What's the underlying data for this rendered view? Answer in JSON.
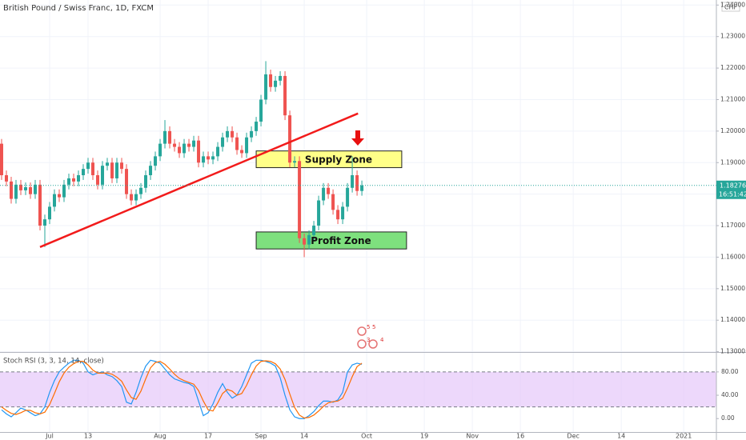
{
  "chart_data": {
    "type": "candlestick",
    "title": "British Pound / Swiss Franc, 1D, FXCM",
    "currency": "CHF",
    "x": [
      0,
      1,
      2,
      3,
      4,
      5,
      6,
      7,
      8,
      9,
      10,
      11,
      12,
      13,
      14,
      15,
      16,
      17,
      18,
      19,
      20,
      21,
      22,
      23,
      24,
      25,
      26,
      27,
      28,
      29,
      30,
      31,
      32,
      33,
      34,
      35,
      36,
      37,
      38,
      39,
      40,
      41,
      42,
      43,
      44,
      45,
      46,
      47,
      48,
      49,
      50,
      51,
      52,
      53,
      54,
      55,
      56,
      57,
      58,
      59,
      60,
      61,
      62,
      63,
      64,
      65,
      66,
      67,
      68,
      69,
      70,
      71,
      72,
      73,
      74,
      75
    ],
    "open": [
      1.196,
      1.186,
      1.184,
      1.1785,
      1.183,
      1.1812,
      1.1822,
      1.18,
      1.183,
      1.17,
      1.172,
      1.176,
      1.18,
      1.179,
      1.183,
      1.185,
      1.184,
      1.186,
      1.188,
      1.19,
      1.186,
      1.183,
      1.189,
      1.19,
      1.185,
      1.19,
      1.188,
      1.18,
      1.178,
      1.18,
      1.182,
      1.186,
      1.189,
      1.192,
      1.196,
      1.2,
      1.196,
      1.195,
      1.193,
      1.196,
      1.195,
      1.197,
      1.19,
      1.192,
      1.191,
      1.192,
      1.195,
      1.198,
      1.2,
      1.198,
      1.194,
      1.193,
      1.198,
      1.2,
      1.203,
      1.21,
      1.218,
      1.214,
      1.216,
      1.2175,
      1.205,
      1.19,
      1.1905,
      1.166,
      1.164,
      1.167,
      1.17,
      1.178,
      1.182,
      1.18,
      1.175,
      1.172,
      1.176,
      1.182,
      1.186,
      1.181
    ],
    "high": [
      1.1975,
      1.1875,
      1.1855,
      1.1845,
      1.1845,
      1.1837,
      1.1837,
      1.1845,
      1.1845,
      1.1735,
      1.1775,
      1.1815,
      1.1815,
      1.1845,
      1.1865,
      1.1865,
      1.1875,
      1.1895,
      1.1915,
      1.1915,
      1.1875,
      1.1905,
      1.1915,
      1.1915,
      1.1915,
      1.1915,
      1.1895,
      1.1815,
      1.1815,
      1.1835,
      1.1875,
      1.1905,
      1.1935,
      1.1975,
      1.2035,
      1.2015,
      1.1975,
      1.1965,
      1.1975,
      1.1975,
      1.1985,
      1.1985,
      1.1935,
      1.1935,
      1.1935,
      1.1965,
      1.1995,
      1.2015,
      1.2015,
      1.1995,
      1.1955,
      1.1995,
      1.2015,
      1.2045,
      1.2115,
      1.2222,
      1.2195,
      1.2175,
      1.219,
      1.219,
      1.2065,
      1.192,
      1.192,
      1.1675,
      1.1685,
      1.1715,
      1.1795,
      1.1835,
      1.1835,
      1.1815,
      1.1765,
      1.1775,
      1.1835,
      1.192,
      1.1875,
      1.1843
    ],
    "low": [
      1.1845,
      1.1825,
      1.177,
      1.177,
      1.1797,
      1.1797,
      1.1785,
      1.1785,
      1.1685,
      1.1632,
      1.1705,
      1.1745,
      1.1775,
      1.1775,
      1.1815,
      1.1825,
      1.1825,
      1.1845,
      1.1865,
      1.1845,
      1.1815,
      1.1815,
      1.1875,
      1.1835,
      1.1835,
      1.1865,
      1.1785,
      1.1765,
      1.1765,
      1.1785,
      1.1805,
      1.1845,
      1.1875,
      1.1905,
      1.1945,
      1.1945,
      1.1935,
      1.1915,
      1.1915,
      1.1935,
      1.1935,
      1.1885,
      1.1885,
      1.1895,
      1.1895,
      1.1905,
      1.1935,
      1.1965,
      1.1965,
      1.1925,
      1.1915,
      1.1915,
      1.1965,
      1.1985,
      1.2015,
      1.2085,
      1.2125,
      1.2125,
      1.2145,
      1.2035,
      1.1885,
      1.1885,
      1.1645,
      1.16,
      1.1625,
      1.1655,
      1.1685,
      1.1765,
      1.1785,
      1.1735,
      1.1705,
      1.1705,
      1.1745,
      1.1805,
      1.1795,
      1.1795
    ],
    "close": [
      1.186,
      1.184,
      1.1785,
      1.183,
      1.1812,
      1.1822,
      1.18,
      1.183,
      1.17,
      1.172,
      1.176,
      1.18,
      1.179,
      1.183,
      1.185,
      1.184,
      1.186,
      1.188,
      1.19,
      1.186,
      1.183,
      1.189,
      1.19,
      1.185,
      1.19,
      1.188,
      1.18,
      1.178,
      1.18,
      1.182,
      1.186,
      1.189,
      1.192,
      1.196,
      1.2,
      1.196,
      1.195,
      1.193,
      1.196,
      1.195,
      1.197,
      1.19,
      1.192,
      1.191,
      1.192,
      1.195,
      1.198,
      1.2,
      1.198,
      1.194,
      1.193,
      1.198,
      1.2,
      1.203,
      1.21,
      1.218,
      1.214,
      1.216,
      1.2175,
      1.205,
      1.19,
      1.1905,
      1.166,
      1.164,
      1.167,
      1.17,
      1.178,
      1.182,
      1.18,
      1.175,
      1.172,
      1.176,
      1.182,
      1.186,
      1.181,
      1.18276
    ],
    "up_color": "#26a69a",
    "down_color": "#ef5350",
    "xlim": [
      -0.33,
      148.8
    ],
    "xticks": [
      {
        "value": 10,
        "label": "Jul"
      },
      {
        "value": 18,
        "label": "13"
      },
      {
        "value": 33,
        "label": "Aug"
      },
      {
        "value": 43,
        "label": "17"
      },
      {
        "value": 54,
        "label": "Sep"
      },
      {
        "value": 63,
        "label": "14"
      },
      {
        "value": 76,
        "label": "Oct"
      },
      {
        "value": 88,
        "label": "19"
      },
      {
        "value": 98,
        "label": "Nov"
      },
      {
        "value": 108,
        "label": "16"
      },
      {
        "value": 119,
        "label": "Dec"
      },
      {
        "value": 129,
        "label": "14"
      },
      {
        "value": 142,
        "label": "2021"
      }
    ],
    "ylim": [
      1.1299,
      1.2416
    ],
    "yticks": [
      {
        "value": 1.24,
        "label": "1.24000"
      },
      {
        "value": 1.23,
        "label": "1.23000"
      },
      {
        "value": 1.22,
        "label": "1.22000"
      },
      {
        "value": 1.21,
        "label": "1.21000"
      },
      {
        "value": 1.2,
        "label": "1.20000"
      },
      {
        "value": 1.19,
        "label": "1.19000"
      },
      {
        "value": 1.18,
        "label": "1.18000"
      },
      {
        "value": 1.17,
        "label": "1.17000"
      },
      {
        "value": 1.16,
        "label": "1.16000"
      },
      {
        "value": 1.15,
        "label": "1.15000"
      },
      {
        "value": 1.14,
        "label": "1.14000"
      },
      {
        "value": 1.13,
        "label": "1.13000"
      }
    ],
    "last_price": 1.18276,
    "countdown": "16:51:42",
    "trendline": {
      "x": [
        8,
        74.2
      ],
      "y": [
        1.1632,
        1.2056
      ],
      "color": "#f21b1b"
    },
    "zones": [
      {
        "label": "Supply Zone",
        "x": [
          53,
          83.3
        ],
        "top": 1.1937,
        "bottom": 1.1884,
        "color": "#ffff88"
      },
      {
        "label": "Profit Zone",
        "x": [
          53,
          84.3
        ],
        "top": 1.168,
        "bottom": 1.1626,
        "color": "#7ee07e"
      }
    ],
    "events": [
      "5",
      "5",
      "3",
      "4"
    ],
    "indicator": {
      "type": "line",
      "title": "Stoch RSI (3, 3, 14, 14, close)",
      "ylim": [
        -23,
        110
      ],
      "yticks": [
        {
          "value": 80,
          "label": "80.00"
        },
        {
          "value": 40,
          "label": "40.00"
        },
        {
          "value": 0,
          "label": "0.00"
        }
      ],
      "band": [
        20,
        80
      ],
      "band_color": "#e5c8fa",
      "series": [
        {
          "color": "#2196f3",
          "values": [
            15,
            8,
            3,
            10,
            18,
            15,
            10,
            5,
            8,
            20,
            45,
            65,
            80,
            88,
            95,
            100,
            100,
            95,
            80,
            75,
            78,
            80,
            75,
            72,
            65,
            55,
            28,
            25,
            45,
            70,
            90,
            100,
            98,
            95,
            85,
            75,
            68,
            65,
            62,
            60,
            55,
            30,
            5,
            10,
            25,
            45,
            60,
            45,
            35,
            40,
            55,
            75,
            95,
            100,
            100,
            98,
            95,
            90,
            70,
            40,
            15,
            3,
            0,
            0,
            5,
            12,
            22,
            30,
            30,
            28,
            32,
            45,
            80,
            92,
            95,
            93
          ]
        },
        {
          "color": "#ff6d00",
          "values": [
            20,
            14,
            9,
            7,
            10,
            14,
            14,
            10,
            8,
            11,
            24,
            43,
            63,
            78,
            88,
            94,
            98,
            98,
            92,
            83,
            78,
            78,
            78,
            76,
            71,
            64,
            49,
            36,
            33,
            47,
            68,
            87,
            96,
            98,
            93,
            85,
            76,
            69,
            65,
            62,
            59,
            48,
            30,
            15,
            13,
            27,
            43,
            50,
            47,
            40,
            43,
            57,
            75,
            90,
            98,
            99,
            98,
            94,
            85,
            67,
            42,
            19,
            6,
            1,
            2,
            6,
            13,
            21,
            27,
            29,
            30,
            35,
            52,
            72,
            89,
            95
          ]
        }
      ]
    }
  }
}
